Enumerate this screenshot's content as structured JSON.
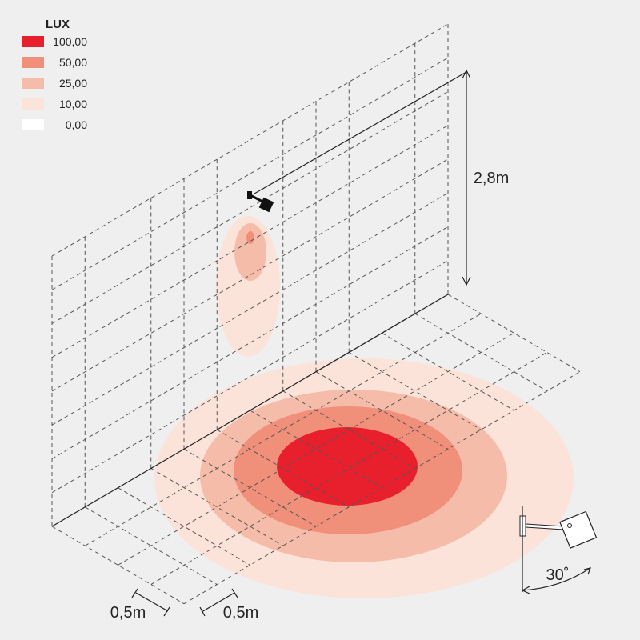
{
  "legend": {
    "title": "LUX",
    "entries": [
      {
        "label": "100,00",
        "color": "#e8202e"
      },
      {
        "label": "50,00",
        "color": "#f0907a"
      },
      {
        "label": "25,00",
        "color": "#f6bcaa"
      },
      {
        "label": "10,00",
        "color": "#fbe3da"
      },
      {
        "label": "0,00",
        "color": "#ffffff"
      }
    ]
  },
  "dimensions": {
    "height": "2,8m",
    "grid_depth": "0,5m",
    "grid_width": "0,5m",
    "angle": "30˚"
  }
}
